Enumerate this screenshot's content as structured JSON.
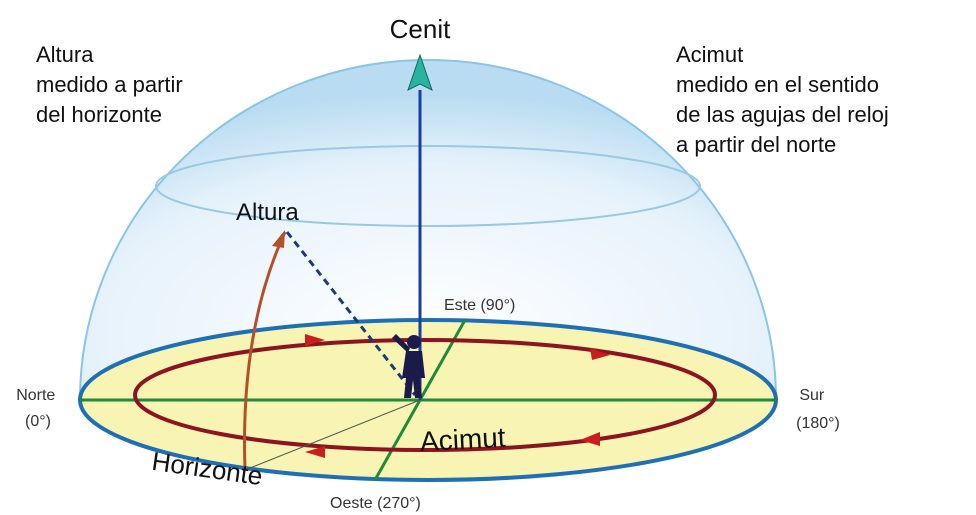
{
  "zenith": "Cenit",
  "altitude_note": {
    "lines": [
      "Altura",
      "medido a partir",
      "del horizonte"
    ]
  },
  "azimuth_note": {
    "lines": [
      "Acimut",
      "medido en el sentido",
      "de las agujas del reloj",
      "a partir del norte"
    ]
  },
  "altitude_label": "Altura",
  "azimuth_label": "Acimut",
  "horizon_label": "Horizonte",
  "east": "Este (90°)",
  "west": "Oeste (270°)",
  "north": [
    "Norte",
    "(0°)"
  ],
  "south": [
    "Sur",
    "(180°)"
  ]
}
